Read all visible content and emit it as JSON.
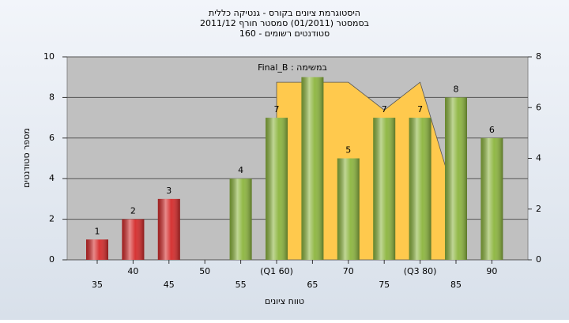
{
  "chart_data": {
    "type": "bar",
    "title": [
      "היסטוגרמת ציונים בקורס - גנטיקה כללית",
      "בסמסטר (01/2011) סמסטר חורף 2011/12",
      "סטודנטים רשומים - 160"
    ],
    "annotation": "במשימה : Final_B",
    "xlabel": "טווח ציונים",
    "ylabel": "מספר סטודנטים",
    "categories": [
      "35",
      "40",
      "45",
      "50",
      "55",
      "(Q1 60)",
      "65",
      "70",
      "75",
      "(Q3 80)",
      "85",
      "90"
    ],
    "series": [
      {
        "values": [
          1,
          2,
          3,
          null,
          4,
          7,
          9,
          5,
          7,
          7,
          8,
          6
        ],
        "value_labels": [
          "1",
          "2",
          "3",
          null,
          "4",
          "7",
          null,
          "5",
          "7",
          "7",
          "8",
          "6"
        ],
        "colors": [
          "#d42a2a",
          "#d42a2a",
          "#d42a2a",
          null,
          "#8cb53e",
          "#8cb53e",
          "#8cb53e",
          "#8cb53e",
          "#8cb53e",
          "#8cb53e",
          "#8cb53e",
          "#8cb53e"
        ]
      },
      {
        "type": "area",
        "axis": "y2",
        "color": "#ffc94d",
        "values": [
          null,
          null,
          null,
          null,
          null,
          7,
          7,
          7,
          5.9,
          7,
          2.3,
          null
        ]
      }
    ],
    "ylim": [
      0,
      10
    ],
    "yticks": [
      0,
      2,
      4,
      6,
      8,
      10
    ],
    "y2lim": [
      0,
      8
    ],
    "y2ticks": [
      0,
      2,
      4,
      6,
      8
    ],
    "grid": true
  }
}
